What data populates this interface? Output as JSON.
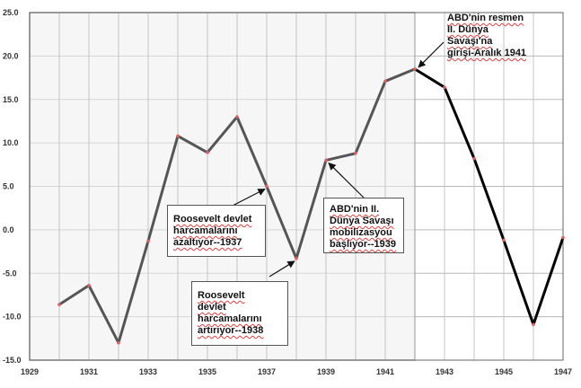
{
  "chart_data": {
    "type": "line",
    "xlim": [
      1929,
      1947
    ],
    "ylim": [
      -15,
      25
    ],
    "x_ticks": [
      "1929",
      "1931",
      "1933",
      "1935",
      "1937",
      "1939",
      "1941",
      "1943",
      "1945",
      "1947"
    ],
    "y_ticks": [
      "25.0",
      "20.0",
      "15.0",
      "10.0",
      "5.0",
      "0.0",
      "-5.0",
      "-10.0",
      "-15.0"
    ],
    "grid": true,
    "highlight_range": [
      1929,
      1942
    ],
    "colors": {
      "line_pre": "#555555",
      "line_post": "#000000",
      "markers": "#e06060",
      "shade": "#efefef"
    },
    "series": [
      {
        "x": [
          1930,
          1931,
          1932,
          1933,
          1934,
          1935,
          1936,
          1937,
          1938,
          1939,
          1940,
          1941,
          1942,
          1943,
          1944,
          1945,
          1946,
          1947
        ],
        "values": [
          -8.6,
          -6.4,
          -13.0,
          -1.3,
          10.8,
          8.9,
          13.0,
          5.0,
          -3.3,
          8.0,
          8.8,
          17.1,
          18.5,
          16.4,
          8.2,
          -1.2,
          -10.9,
          -0.9
        ]
      }
    ],
    "annotations": [
      {
        "id": "ww2-entry",
        "lines": [
          "ABD'nin resmen",
          "II. Dünya",
          "Savaşı'na",
          "girişi-Aralık 1941"
        ],
        "target_x": 1942,
        "target_y": 18.5
      },
      {
        "id": "cut-1937",
        "lines": [
          "Roosevelt devlet",
          "harcamalarını",
          "azaltıyor--1937"
        ],
        "target_x": 1937,
        "target_y": 5.0
      },
      {
        "id": "raise-1938",
        "lines": [
          "Roosevelt",
          "devlet",
          "harcamalarını",
          "artırıyor--1938"
        ],
        "target_x": 1938,
        "target_y": -3.3
      },
      {
        "id": "mob-1939",
        "lines": [
          "ABD'nin II.",
          "Dünya Savaşı",
          "mobilizasyou",
          "başlıyor--1939"
        ],
        "target_x": 1939,
        "target_y": 8.0
      }
    ]
  }
}
